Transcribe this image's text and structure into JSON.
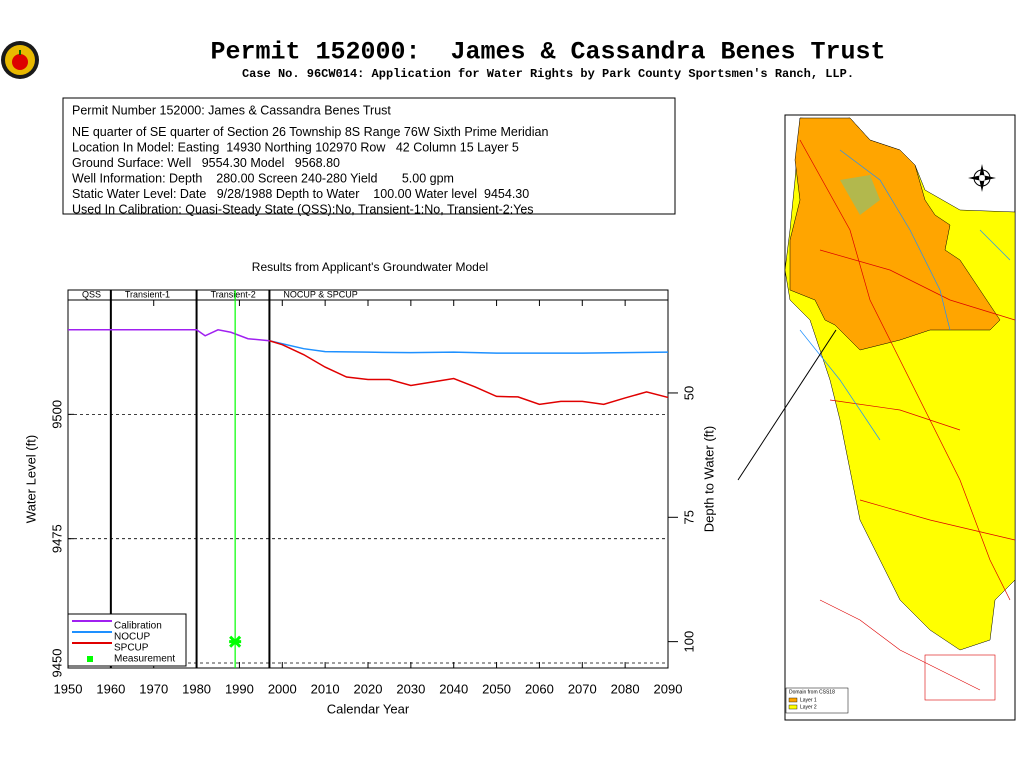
{
  "header": {
    "title": "Permit 152000:  James & Cassandra Benes Trust",
    "subtitle": "Case No. 96CW014: Application for Water Rights by Park County Sportsmen's Ranch, LLP."
  },
  "info": {
    "lines": [
      "Permit Number 152000: James & Cassandra Benes Trust",
      "NE quarter of SE quarter of Section 26 Township 8S Range 76W Sixth Prime Meridian",
      "Location In Model: Easting  14930 Northing 102970 Row   42 Column 15 Layer 5",
      "Ground Surface: Well   9554.30 Model   9568.80",
      "Well Information: Depth    280.00 Screen 240-280 Yield       5.00 gpm",
      "Static Water Level: Date   9/28/1988 Depth to Water    100.00 Water level  9454.30",
      "Used In Calibration: Quasi-Steady State (QSS):No, Transient-1:No, Transient-2:Yes"
    ]
  },
  "chart_data": {
    "type": "line",
    "title": "Results from Applicant's Groundwater Model",
    "xlabel": "Calendar Year",
    "ylabel": "Water Level (ft)",
    "y2label": "Depth to Water (ft)",
    "xlim": [
      1950,
      2090
    ],
    "xticks": [
      1950,
      1960,
      1970,
      1980,
      1990,
      2000,
      2010,
      2020,
      2030,
      2040,
      2050,
      2060,
      2070,
      2080,
      2090
    ],
    "ylim": [
      9449,
      9525
    ],
    "yticks": [
      9450,
      9475,
      9500
    ],
    "y2lim": [
      105.3,
      29.3
    ],
    "y2ticks": [
      50,
      75,
      100
    ],
    "grid": true,
    "period_boundaries": [
      1960,
      1980,
      1997
    ],
    "period_labels": [
      "QSS",
      "Transient-1",
      "Transient-2",
      "NOCUP & SPCUP"
    ],
    "series": [
      {
        "name": "Calibration",
        "color": "#a020f0",
        "x": [
          1950,
          1960,
          1970,
          1980,
          1982,
          1985,
          1988,
          1992,
          1997
        ],
        "values": [
          9517,
          9517,
          9517,
          9517,
          9515.8,
          9517,
          9516.5,
          9515.2,
          9514.8
        ]
      },
      {
        "name": "NOCUP",
        "color": "#1e90ff",
        "x": [
          1997,
          2000,
          2005,
          2010,
          2020,
          2030,
          2040,
          2050,
          2060,
          2070,
          2080,
          2090
        ],
        "values": [
          9514.8,
          9514.2,
          9513.2,
          9512.6,
          9512.5,
          9512.4,
          9512.5,
          9512.3,
          9512.3,
          9512.3,
          9512.4,
          9512.5
        ]
      },
      {
        "name": "SPCUP",
        "color": "#e00000",
        "x": [
          1997,
          2000,
          2005,
          2010,
          2015,
          2020,
          2025,
          2030,
          2035,
          2040,
          2045,
          2050,
          2055,
          2060,
          2065,
          2070,
          2075,
          2080,
          2085,
          2090
        ],
        "values": [
          9514.8,
          9514,
          9512,
          9509.5,
          9507.5,
          9507,
          9507,
          9505.8,
          9506.5,
          9507.2,
          9505.5,
          9503.6,
          9503.5,
          9502,
          9502.6,
          9502.6,
          9502,
          9503.3,
          9504.5,
          9503.4
        ]
      },
      {
        "name": "Measurement",
        "color": "#00ff00",
        "marker": true,
        "x": [
          1989
        ],
        "values": [
          9454.3
        ]
      }
    ]
  },
  "map": {
    "legend_title": "Domain from CSS18",
    "layers": [
      "Layer 1",
      "Layer 2"
    ]
  }
}
